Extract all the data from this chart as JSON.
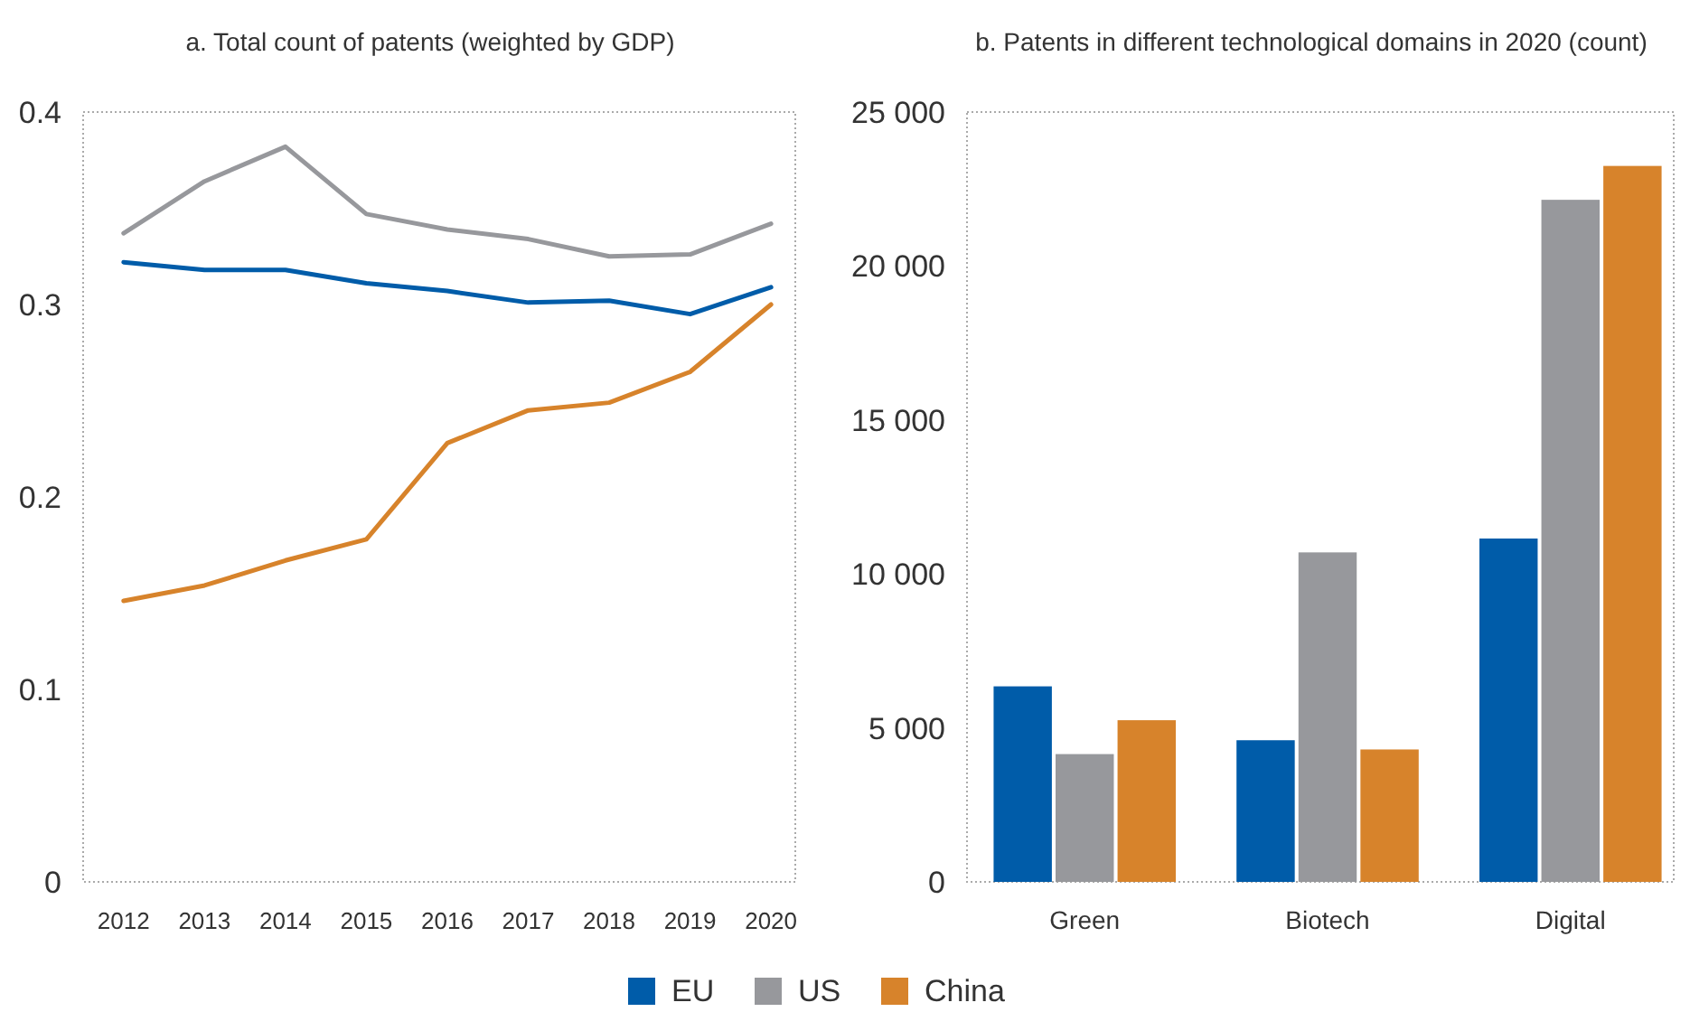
{
  "chart_data": [
    {
      "type": "line",
      "title": "a. Total count of patents (weighted by GDP)",
      "x": [
        2012,
        2013,
        2014,
        2015,
        2016,
        2017,
        2018,
        2019,
        2020
      ],
      "xlim": [
        2011.5,
        2020.3
      ],
      "xticks": [
        2012,
        2013,
        2014,
        2015,
        2016,
        2017,
        2018,
        2019,
        2020
      ],
      "ylim": [
        0,
        0.4
      ],
      "yticks": [
        0,
        0.1,
        0.2,
        0.3,
        0.4
      ],
      "grid": false,
      "legend": "bottom",
      "series": [
        {
          "name": "EU",
          "color": "#005ca9",
          "values": [
            0.322,
            0.318,
            0.318,
            0.311,
            0.307,
            0.301,
            0.302,
            0.295,
            0.309
          ]
        },
        {
          "name": "US",
          "color": "#97989c",
          "values": [
            0.337,
            0.364,
            0.382,
            0.347,
            0.339,
            0.334,
            0.325,
            0.326,
            0.342
          ]
        },
        {
          "name": "China",
          "color": "#d7832b",
          "values": [
            0.146,
            0.154,
            0.167,
            0.178,
            0.228,
            0.245,
            0.249,
            0.265,
            0.3
          ]
        }
      ]
    },
    {
      "type": "bar",
      "title": "b. Patents in different technological domains in 2020 (count)",
      "categories": [
        "Green",
        "Biotech",
        "Digital"
      ],
      "ylim": [
        0,
        25000
      ],
      "yticks": [
        0,
        {
          "value": 5000,
          "label": "5 000"
        },
        {
          "value": 10000,
          "label": "10 000"
        },
        {
          "value": 15000,
          "label": "15 000"
        },
        {
          "value": 20000,
          "label": "20 000"
        },
        {
          "value": 25000,
          "label": "25 000"
        }
      ],
      "grid": false,
      "series": [
        {
          "color": "#005ca9",
          "values": [
            6350,
            4600,
            11150
          ]
        },
        {
          "color": "#97989c",
          "values": [
            4150,
            10700,
            22150
          ]
        },
        {
          "color": "#d7832b",
          "values": [
            5250,
            4300,
            23250
          ]
        }
      ]
    }
  ]
}
